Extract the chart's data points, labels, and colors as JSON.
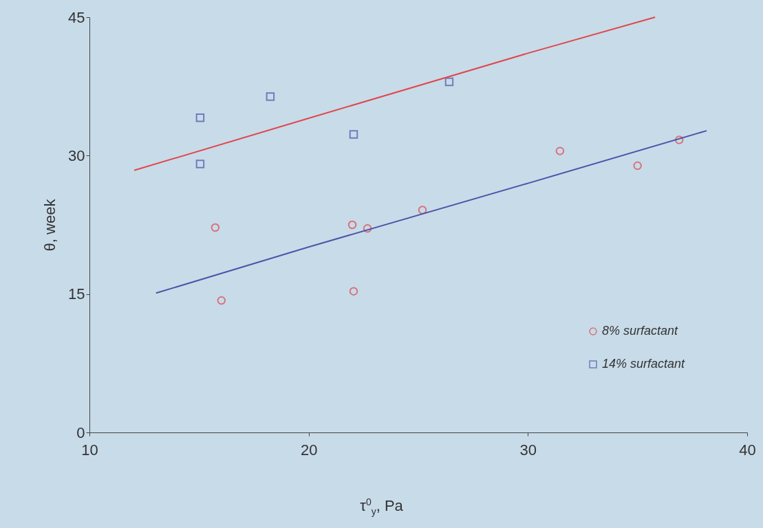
{
  "chart_data": {
    "type": "scatter",
    "xlabel": "τ$^{0}$$_{y}$, Pa",
    "ylabel": "θ, week",
    "xlim": [
      10,
      40
    ],
    "ylim": [
      0,
      45
    ],
    "xticks": [
      10,
      20,
      30,
      40
    ],
    "yticks": [
      0,
      15,
      30,
      45
    ],
    "grid": false,
    "legend": "bottom right",
    "series": [
      {
        "name": "8% surfactant",
        "type": "scatter",
        "marker": "circle",
        "color": "#e0474c",
        "x": [
          15.74,
          16.02,
          21.99,
          22.68,
          22.05,
          25.19,
          31.46,
          35.0,
          36.9
        ],
        "values": [
          22.2,
          14.3,
          22.5,
          22.1,
          15.3,
          24.1,
          30.5,
          28.9,
          31.7
        ]
      },
      {
        "name": "14% surfactant",
        "type": "scatter",
        "marker": "square",
        "color": "#4a55a8",
        "x": [
          15.05,
          15.05,
          18.25,
          22.05,
          26.41
        ],
        "values": [
          34.1,
          29.1,
          36.4,
          32.3,
          38.0
        ]
      },
      {
        "type": "line",
        "color": "#e0474c",
        "x": [
          12.04,
          20,
          30,
          35.8
        ],
        "values": [
          28.4,
          34.05,
          41.1,
          45.0
        ]
      },
      {
        "type": "line",
        "color": "#4a55a8",
        "x": [
          13.04,
          20,
          30,
          38.15
        ],
        "values": [
          15.1,
          20.1,
          27.0,
          32.7
        ]
      }
    ]
  }
}
